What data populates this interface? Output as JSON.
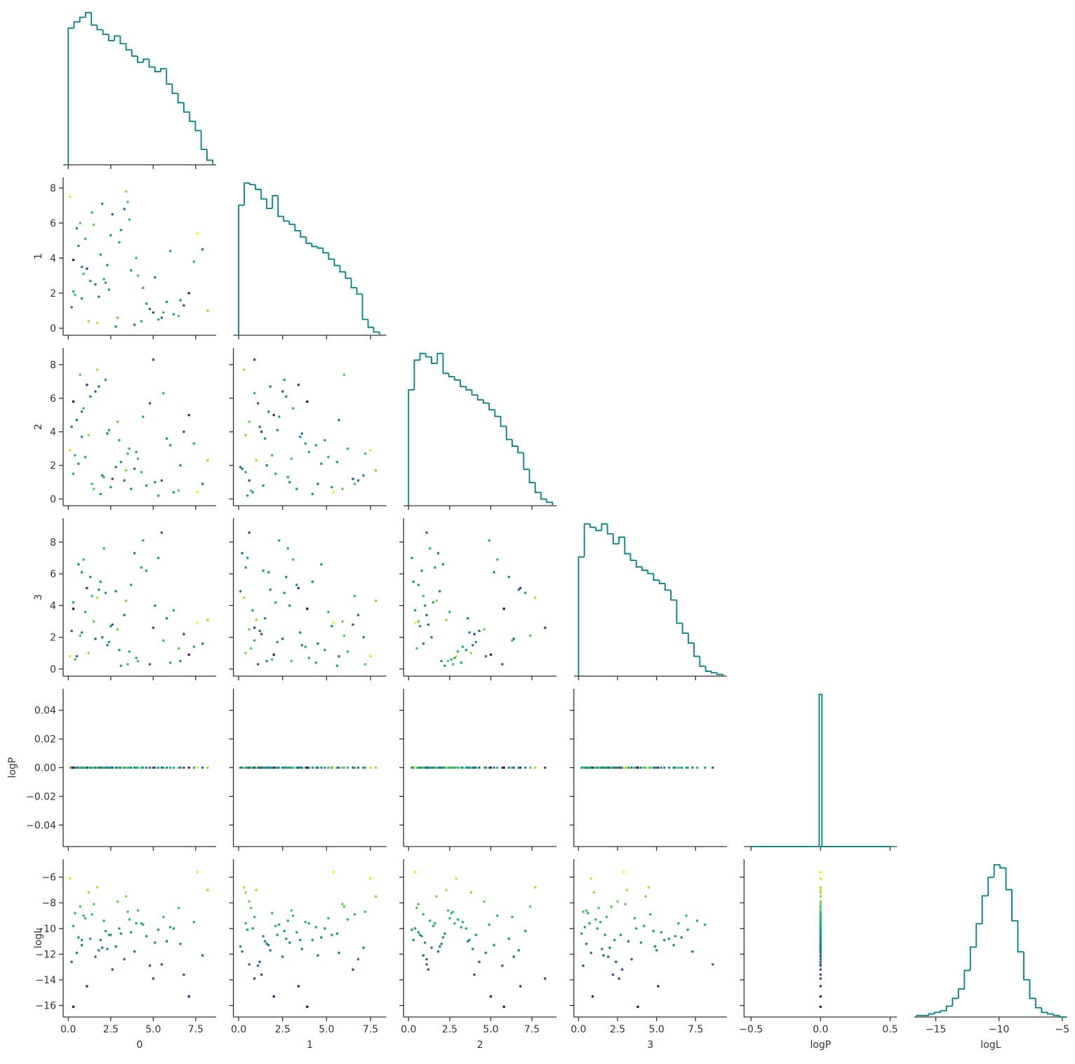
{
  "chart_data": {
    "type": "pairplot",
    "variables": [
      "0",
      "1",
      "2",
      "3",
      "logP",
      "logL"
    ],
    "hist_color": "#008080",
    "cmap": "viridis",
    "color_by": 5,
    "axes": [
      {
        "xlim": [
          -0.3,
          8.7
        ],
        "xticks": [
          {
            "value": 0,
            "label": "0.0"
          },
          2.5,
          {
            "value": 5,
            "label": "5.0"
          },
          7.5
        ]
      },
      {
        "xlim": [
          -0.3,
          8.4
        ],
        "xticks": [
          {
            "value": 0,
            "label": "0.0"
          },
          2.5,
          {
            "value": 5,
            "label": "5.0"
          },
          7.5
        ],
        "ylim": [
          -0.4,
          8.6
        ],
        "yticks": [
          0,
          2,
          4,
          6,
          8
        ]
      },
      {
        "xlim": [
          -0.3,
          9.0
        ],
        "xticks": [
          {
            "value": 0,
            "label": "0.0"
          },
          2.5,
          {
            "value": 5,
            "label": "5.0"
          },
          7.5
        ],
        "ylim": [
          -0.4,
          9.0
        ],
        "yticks": [
          0,
          2,
          4,
          6,
          8
        ]
      },
      {
        "xlim": [
          -0.3,
          9.5
        ],
        "xticks": [
          {
            "value": 0,
            "label": "0.0"
          },
          2.5,
          {
            "value": 5,
            "label": "5.0"
          },
          7.5
        ],
        "ylim": [
          -0.45,
          9.5
        ],
        "yticks": [
          0,
          2,
          4,
          6,
          8
        ]
      },
      {
        "xlim": [
          -0.55,
          0.55
        ],
        "xticks": [
          {
            "value": -0.5,
            "label": "−0.5"
          },
          {
            "value": 0,
            "label": "0.0"
          },
          0.5
        ],
        "ylim": [
          -0.055,
          0.055
        ],
        "yticks": [
          {
            "value": -0.04,
            "label": "−0.04"
          },
          {
            "value": -0.02,
            "label": "−0.02"
          },
          {
            "value": 0,
            "label": "0.00"
          },
          0.02,
          0.04
        ]
      },
      {
        "xlim": [
          -16.7,
          -4.6
        ],
        "xticks": [
          {
            "value": -15,
            "label": "−15"
          },
          {
            "value": -10,
            "label": "−10"
          },
          {
            "value": -5,
            "label": "−5"
          }
        ],
        "ylim": [
          -16.9,
          -4.6
        ],
        "yticks": [
          {
            "value": -16,
            "label": "−16"
          },
          {
            "value": -14,
            "label": "−14"
          },
          {
            "value": -12,
            "label": "−12"
          },
          {
            "value": -10,
            "label": "−10"
          },
          {
            "value": -8,
            "label": "−8"
          },
          {
            "value": -6,
            "label": "−6"
          }
        ]
      }
    ],
    "samples": [
      [
        0.3,
        1.2,
        2.5,
        0.8,
        4.1,
        3.3,
        5.6,
        1.9,
        6.8,
        0.1,
        2.2,
        3.9,
        7.4,
        1.5,
        4.8,
        0.6,
        2.9,
        5.1,
        3.6,
        1.1,
        6.2,
        0.4,
        2.0,
        4.4,
        7.9,
        1.7,
        3.1,
        5.8,
        0.9,
        2.6,
        6.5,
        1.3,
        4.0,
        0.2,
        3.4,
        5.3,
        2.3,
        7.1,
        1.0,
        4.6,
        0.7,
        2.8,
        6.0,
        1.6,
        3.7,
        8.2,
        0.5,
        2.1,
        5.0,
        3.0,
        1.4,
        6.6,
        0.3,
        4.3,
        2.4,
        7.6,
        1.8,
        3.5,
        5.5,
        0.8
      ],
      [
        2.1,
        0.4,
        5.3,
        1.7,
        3.0,
        6.8,
        0.9,
        4.2,
        1.3,
        7.5,
        2.6,
        0.2,
        3.8,
        5.9,
        1.1,
        4.7,
        0.6,
        2.9,
        6.2,
        3.4,
        0.8,
        1.9,
        7.1,
        2.3,
        4.5,
        0.3,
        5.6,
        1.5,
        3.1,
        6.5,
        0.7,
        2.7,
        4.0,
        1.2,
        7.8,
        0.5,
        3.6,
        2.0,
        5.1,
        1.4,
        6.0,
        0.1,
        4.4,
        2.5,
        3.3,
        1.0,
        5.7,
        2.8,
        0.9,
        4.9,
        6.6,
        1.6,
        3.9,
        0.4,
        2.2,
        5.4,
        1.8,
        7.2,
        0.6,
        3.5
      ],
      [
        1.5,
        3.8,
        0.7,
        5.2,
        2.4,
        1.1,
        6.3,
        0.3,
        4.0,
        2.9,
        7.1,
        1.8,
        3.3,
        0.6,
        5.7,
        2.1,
        4.6,
        1.0,
        3.0,
        6.8,
        0.4,
        2.6,
        1.4,
        4.9,
        0.9,
        7.7,
        2.2,
        3.6,
        5.4,
        1.2,
        0.5,
        6.1,
        2.8,
        4.3,
        1.7,
        0.2,
        3.9,
        5.0,
        2.5,
        0.8,
        7.4,
        1.9,
        3.2,
        6.4,
        0.6,
        2.3,
        4.7,
        1.3,
        8.3,
        3.5,
        0.9,
        2.0,
        5.8,
        1.6,
        4.1,
        0.4,
        6.7,
        2.7,
        1.1,
        3.7
      ],
      [
        4.2,
        1.0,
        2.7,
        6.1,
        0.5,
        3.4,
        1.8,
        5.5,
        2.2,
        0.8,
        4.8,
        7.3,
        1.4,
        3.0,
        0.3,
        6.6,
        2.5,
        4.0,
        1.1,
        5.1,
        3.7,
        0.6,
        2.0,
        8.1,
        1.6,
        4.5,
        0.2,
        3.2,
        6.9,
        2.8,
        1.3,
        5.8,
        0.7,
        2.4,
        4.3,
        7.0,
        1.5,
        0.9,
        3.6,
        6.2,
        2.1,
        4.9,
        0.4,
        1.9,
        5.3,
        3.1,
        0.8,
        7.6,
        2.6,
        1.2,
        4.6,
        0.5,
        3.8,
        6.4,
        1.7,
        2.9,
        5.0,
        0.3,
        8.6,
        2.3
      ],
      [
        0,
        0,
        0,
        0,
        0,
        0,
        0,
        0,
        0,
        0,
        0,
        0,
        0,
        0,
        0,
        0,
        0,
        0,
        0,
        0,
        0,
        0,
        0,
        0,
        0,
        0,
        0,
        0,
        0,
        0,
        0,
        0,
        0,
        0,
        0,
        0,
        0,
        0,
        0,
        0,
        0,
        0,
        0,
        0,
        0,
        0,
        0,
        0,
        0,
        0,
        0,
        0,
        0,
        0,
        0,
        0,
        0,
        0,
        0,
        0
      ],
      [
        -9.8,
        -7.2,
        -10.5,
        -11.3,
        -8.6,
        -12.4,
        -9.1,
        -10.9,
        -13.6,
        -6.1,
        -10.2,
        -11.8,
        -9.5,
        -8.1,
        -12.9,
        -10.7,
        -7.9,
        -11.1,
        -9.3,
        -14.5,
        -10.0,
        -8.8,
        -11.5,
        -9.7,
        -12.1,
        -6.8,
        -10.4,
        -11.0,
        -9.0,
        -13.2,
        -8.4,
        -10.8,
        -9.6,
        -12.6,
        -7.5,
        -10.1,
        -11.6,
        -15.3,
        -9.2,
        -10.6,
        -8.3,
        -11.4,
        -9.9,
        -12.2,
        -10.3,
        -7.0,
        -11.9,
        -9.4,
        -13.9,
        -10.0,
        -8.9,
        -11.2,
        -16.1,
        -9.6,
        -10.5,
        -5.6,
        -11.7,
        -8.7,
        -12.8,
        -10.9
      ]
    ],
    "hists": [
      {
        "bins": [
          0,
          0.34,
          0.68,
          1.02,
          1.36,
          1.7,
          2.04,
          2.38,
          2.72,
          3.06,
          3.4,
          3.74,
          4.08,
          4.42,
          4.76,
          5.1,
          5.44,
          5.78,
          6.12,
          6.46,
          6.8,
          7.14,
          7.48,
          7.82,
          8.16,
          8.5
        ],
        "counts": [
          88,
          92,
          95,
          98,
          90,
          87,
          84,
          80,
          83,
          78,
          74,
          70,
          66,
          68,
          63,
          60,
          62,
          52,
          46,
          40,
          34,
          28,
          22,
          10,
          3
        ]
      },
      {
        "bins": [
          0,
          0.32,
          0.64,
          0.96,
          1.28,
          1.6,
          1.92,
          2.24,
          2.56,
          2.88,
          3.2,
          3.52,
          3.84,
          4.16,
          4.48,
          4.8,
          5.12,
          5.44,
          5.76,
          6.08,
          6.4,
          6.72,
          7.04,
          7.36,
          7.68,
          8.0
        ],
        "counts": [
          82,
          96,
          95,
          92,
          86,
          80,
          88,
          75,
          72,
          70,
          66,
          62,
          58,
          56,
          55,
          52,
          48,
          44,
          40,
          36,
          30,
          26,
          10,
          5,
          2
        ]
      },
      {
        "bins": [
          0,
          0.35,
          0.7,
          1.05,
          1.4,
          1.75,
          2.1,
          2.45,
          2.8,
          3.15,
          3.5,
          3.85,
          4.2,
          4.55,
          4.9,
          5.25,
          5.6,
          5.95,
          6.3,
          6.65,
          7.0,
          7.35,
          7.7,
          8.05,
          8.4,
          8.75
        ],
        "counts": [
          70,
          88,
          92,
          90,
          86,
          92,
          80,
          78,
          76,
          72,
          70,
          67,
          64,
          62,
          58,
          54,
          48,
          40,
          36,
          32,
          22,
          14,
          8,
          4,
          2
        ]
      },
      {
        "bins": [
          0,
          0.37,
          0.74,
          1.11,
          1.48,
          1.85,
          2.22,
          2.59,
          2.96,
          3.33,
          3.7,
          4.07,
          4.44,
          4.81,
          5.18,
          5.55,
          5.92,
          6.29,
          6.66,
          7.03,
          7.4,
          7.77,
          8.14,
          8.51,
          8.88,
          9.25
        ],
        "counts": [
          72,
          92,
          90,
          88,
          92,
          86,
          80,
          84,
          74,
          70,
          66,
          64,
          62,
          58,
          56,
          52,
          46,
          32,
          26,
          20,
          12,
          6,
          3,
          2,
          1
        ]
      },
      {
        "bins": [
          -0.5,
          -0.01,
          0.01,
          0.5
        ],
        "counts": [
          0,
          100,
          0
        ]
      },
      {
        "bins": [
          -16.5,
          -16.03,
          -15.56,
          -15.09,
          -14.62,
          -14.15,
          -13.68,
          -13.21,
          -12.74,
          -12.27,
          -11.8,
          -11.33,
          -10.86,
          -10.39,
          -9.92,
          -9.45,
          -8.98,
          -8.51,
          -8.04,
          -7.57,
          -7.1,
          -6.63,
          -6.16,
          -5.69,
          -5.22,
          -4.75
        ],
        "counts": [
          1,
          1,
          2,
          3,
          4,
          7,
          12,
          18,
          30,
          45,
          60,
          78,
          90,
          98,
          96,
          82,
          62,
          42,
          24,
          12,
          6,
          3,
          2,
          1,
          0
        ]
      }
    ]
  }
}
